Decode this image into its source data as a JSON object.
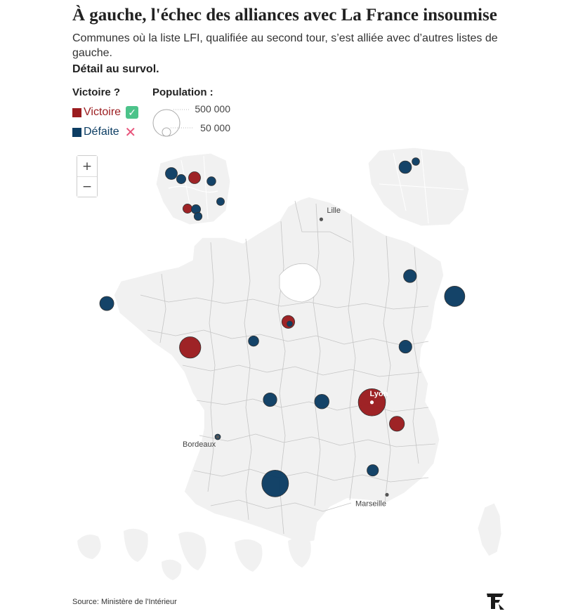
{
  "header": {
    "title": "À gauche, l'échec des alliances avec La France insoumise",
    "subtitle": "Communes où la liste LFI, qualifiée au second tour, s’est alliée avec d’autres listes de gauche.",
    "hover_hint": "Détail au survol."
  },
  "legend": {
    "result_title": "Victoire ?",
    "victory_label": "Victoire",
    "defeat_label": "Défaite",
    "victory_badge": "✓",
    "defeat_badge": "✕",
    "population_title": "Population :",
    "size_large": "500 000",
    "size_small": "50 000"
  },
  "colors": {
    "victory": "#9b1c1f",
    "defeat": "#0c3d63",
    "land": "#f1f1f1",
    "border": "#b8b8b8"
  },
  "zoom": {
    "in": "+",
    "out": "−"
  },
  "cities": [
    {
      "name": "Lille",
      "lon": 3.06,
      "lat": 50.63
    },
    {
      "name": "Lyon",
      "lon": 4.84,
      "lat": 45.76
    },
    {
      "name": "Bordeaux",
      "lon": -0.58,
      "lat": 44.84
    },
    {
      "name": "Marseille",
      "lon": 5.37,
      "lat": 43.3
    }
  ],
  "communes": [
    {
      "lon": -4.48,
      "lat": 48.39,
      "pop": 140000,
      "result": "defeat"
    },
    {
      "lon": -1.55,
      "lat": 47.22,
      "pop": 320000,
      "result": "victory"
    },
    {
      "lon": 1.9,
      "lat": 47.9,
      "pop": 116000,
      "result": "victory"
    },
    {
      "lon": 1.95,
      "lat": 47.85,
      "pop": 10000,
      "result": "defeat"
    },
    {
      "lon": 6.18,
      "lat": 49.12,
      "pop": 118000,
      "result": "defeat"
    },
    {
      "lon": 7.75,
      "lat": 48.58,
      "pop": 290000,
      "result": "defeat"
    },
    {
      "lon": 6.02,
      "lat": 47.24,
      "pop": 116000,
      "result": "defeat"
    },
    {
      "lon": 0.68,
      "lat": 47.39,
      "pop": 75000,
      "result": "defeat"
    },
    {
      "lon": 1.26,
      "lat": 45.83,
      "pop": 130000,
      "result": "defeat"
    },
    {
      "lon": 3.08,
      "lat": 45.78,
      "pop": 147000,
      "result": "defeat"
    },
    {
      "lon": 4.84,
      "lat": 45.76,
      "pop": 520000,
      "result": "victory"
    },
    {
      "lon": 5.72,
      "lat": 45.19,
      "pop": 158000,
      "result": "victory"
    },
    {
      "lon": 4.87,
      "lat": 43.95,
      "pop": 92000,
      "result": "defeat"
    },
    {
      "lon": 1.44,
      "lat": 43.6,
      "pop": 500000,
      "result": "defeat"
    },
    {
      "lon": -0.58,
      "lat": 44.84,
      "pop": 20000,
      "result": "defeat"
    }
  ],
  "inset_paris": [
    {
      "ix": 244,
      "iy": 247,
      "pop": 100000,
      "result": "defeat"
    },
    {
      "ix": 258,
      "iy": 255,
      "pop": 60000,
      "result": "defeat"
    },
    {
      "ix": 277,
      "iy": 253,
      "pop": 100000,
      "result": "victory"
    },
    {
      "ix": 301,
      "iy": 258,
      "pop": 55000,
      "result": "defeat"
    },
    {
      "ix": 267,
      "iy": 297,
      "pop": 60000,
      "result": "victory"
    },
    {
      "ix": 279,
      "iy": 298,
      "pop": 60000,
      "result": "defeat"
    },
    {
      "ix": 282,
      "iy": 308,
      "pop": 45000,
      "result": "defeat"
    },
    {
      "ix": 314,
      "iy": 287,
      "pop": 42000,
      "result": "defeat"
    }
  ],
  "inset_north": [
    {
      "ix": 577,
      "iy": 238,
      "pop": 110000,
      "result": "defeat"
    },
    {
      "ix": 592,
      "iy": 230,
      "pop": 40000,
      "result": "defeat"
    }
  ],
  "source": "Source: Ministère de l'Intérieur"
}
